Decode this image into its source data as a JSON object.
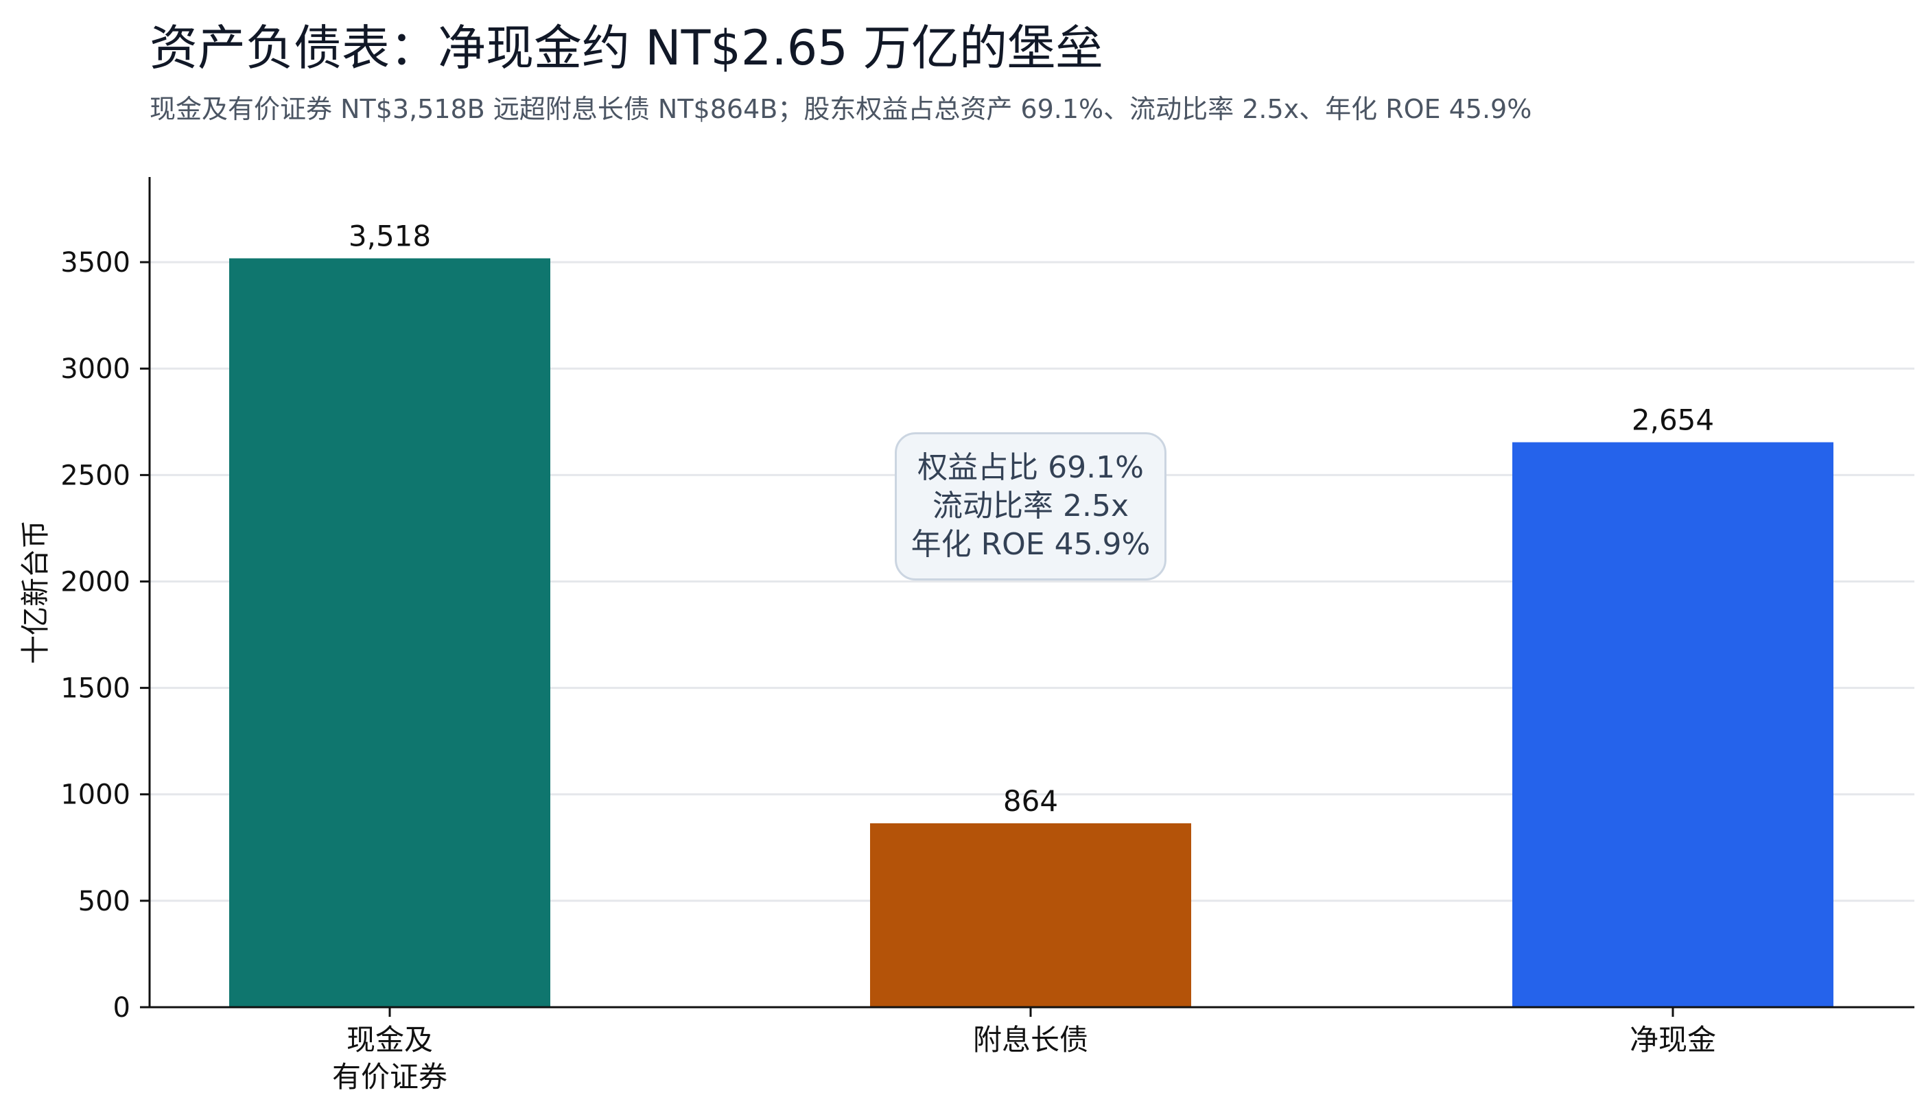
{
  "header": {
    "title": "资产负债表：净现金约 NT$2.65 万亿的堡垒",
    "subtitle": "现金及有价证券 NT$3,518B 远超附息长债 NT$864B；股东权益占总资产 69.1%、流动比率 2.5x、年化 ROE 45.9%"
  },
  "annotation": {
    "lines": [
      "权益占比 69.1%",
      "流动比率 2.5x",
      "年化 ROE 45.9%"
    ]
  },
  "chart_data": {
    "type": "bar",
    "categories": [
      [
        "现金及",
        "有价证券"
      ],
      [
        "附息长债"
      ],
      [
        "净现金"
      ]
    ],
    "values": [
      3518,
      864,
      2654
    ],
    "value_labels": [
      "3,518",
      "864",
      "2,654"
    ],
    "colors": [
      "#0f766e",
      "#b45309",
      "#2563eb"
    ],
    "title": "资产负债表：净现金约 NT$2.65 万亿的堡垒",
    "subtitle": "现金及有价证券 NT$3,518B 远超附息长债 NT$864B；股东权益占总资产 69.1%、流动比率 2.5x、年化 ROE 45.9%",
    "xlabel": "",
    "ylabel": "十亿新台币",
    "ylim": [
      0,
      3900
    ],
    "yticks": [
      0,
      500,
      1000,
      1500,
      2000,
      2500,
      3000,
      3500
    ],
    "grid": "horizontal",
    "legend": "none"
  }
}
